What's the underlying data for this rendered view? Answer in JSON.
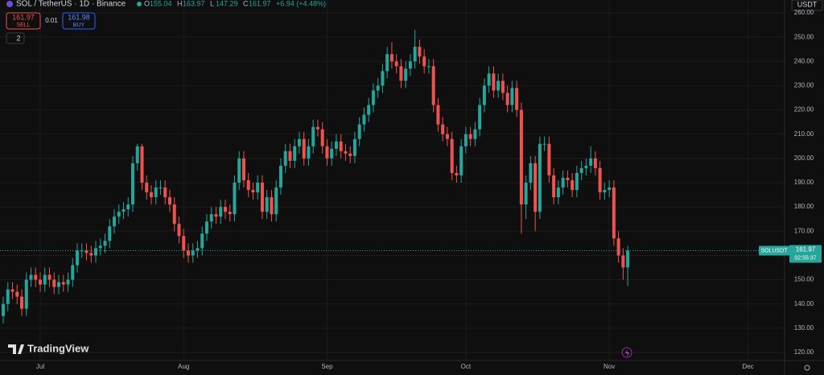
{
  "chart_data": {
    "type": "candlestick",
    "currency": "USDT",
    "symbol_tag": "SOLUSDT",
    "last_price_label": "161.97",
    "countdown": "02:55:37",
    "up_color": "#26a69a",
    "down_color": "#ef5350",
    "grid": true,
    "ylim": [
      116.67,
      265.31
    ],
    "xlim": [
      -0.7,
      168.9
    ],
    "yticks": [
      {
        "value": 120,
        "label": "120.00"
      },
      {
        "value": 130,
        "label": "130.00"
      },
      {
        "value": 140,
        "label": "140.00"
      },
      {
        "value": 150,
        "label": "150.00"
      },
      {
        "value": 160,
        "label": "160.00"
      },
      {
        "value": 170,
        "label": "170.00"
      },
      {
        "value": 180,
        "label": "180.00"
      },
      {
        "value": 190,
        "label": "190.00"
      },
      {
        "value": 200,
        "label": "200.00"
      },
      {
        "value": 210,
        "label": "210.00"
      },
      {
        "value": 220,
        "label": "220.00"
      },
      {
        "value": 230,
        "label": "230.00"
      },
      {
        "value": 240,
        "label": "240.00"
      },
      {
        "value": 250,
        "label": "250.00"
      },
      {
        "value": 260,
        "label": "260.00"
      }
    ],
    "xticks": [
      {
        "value": 8,
        "label": "Jul"
      },
      {
        "value": 39,
        "label": "Aug"
      },
      {
        "value": 70,
        "label": "Sep"
      },
      {
        "value": 100,
        "label": "Oct"
      },
      {
        "value": 131,
        "label": "Nov"
      },
      {
        "value": 161,
        "label": "Dec"
      }
    ],
    "open": [
      135,
      140,
      146,
      145,
      143,
      138,
      150,
      152,
      150,
      148,
      152,
      150,
      147,
      149,
      148,
      150,
      156,
      162,
      162,
      161,
      160,
      163,
      164,
      166,
      172,
      176,
      178,
      179,
      181,
      198,
      205,
      190,
      186,
      184,
      188,
      188,
      184,
      181,
      173,
      168,
      162,
      160,
      162,
      163,
      169,
      174,
      177,
      176,
      180,
      178,
      177,
      190,
      200,
      191,
      187,
      186,
      190,
      178,
      184,
      177,
      188,
      197,
      203,
      199,
      205,
      208,
      200,
      205,
      213,
      212,
      205,
      200,
      204,
      207,
      203,
      202,
      201,
      208,
      214,
      218,
      222,
      228,
      230,
      236,
      243,
      240,
      238,
      232,
      237,
      240,
      246,
      242,
      238,
      238,
      222,
      214,
      210,
      208,
      194,
      193,
      205,
      210,
      208,
      212,
      222,
      230,
      235,
      228,
      232,
      227,
      222,
      229,
      220,
      181,
      190,
      198,
      178,
      206,
      206,
      193,
      184,
      188,
      192,
      191,
      187,
      194,
      196,
      197,
      200,
      196,
      186,
      187,
      188,
      167,
      160,
      155.04
    ],
    "high": [
      143,
      149,
      149,
      148,
      146,
      153,
      155,
      155,
      153,
      155,
      155,
      153,
      152,
      152,
      153,
      159,
      165,
      165,
      165,
      164,
      166,
      167,
      169,
      175,
      179,
      181,
      182,
      184,
      201,
      206,
      206,
      193,
      189,
      191,
      191,
      191,
      187,
      184,
      176,
      171,
      165,
      165,
      166,
      172,
      177,
      180,
      180,
      183,
      183,
      181,
      193,
      203,
      203,
      194,
      190,
      193,
      193,
      187,
      187,
      191,
      200,
      206,
      206,
      208,
      211,
      211,
      208,
      216,
      216,
      215,
      208,
      207,
      210,
      210,
      206,
      205,
      211,
      217,
      221,
      225,
      231,
      233,
      239,
      246,
      248,
      243,
      241,
      240,
      243,
      253,
      249,
      245,
      241,
      241,
      225,
      217,
      213,
      211,
      197,
      208,
      213,
      213,
      215,
      225,
      233,
      238,
      238,
      235,
      235,
      230,
      232,
      232,
      223,
      193,
      201,
      201,
      209,
      209,
      209,
      196,
      191,
      195,
      195,
      194,
      197,
      199,
      200,
      205,
      203,
      199,
      190,
      191,
      191,
      170,
      163,
      163.97
    ],
    "low": [
      132,
      137,
      142,
      140,
      135,
      135,
      147,
      147,
      145,
      145,
      147,
      144,
      144,
      145,
      145,
      147,
      153,
      159,
      158,
      157,
      157,
      160,
      161,
      163,
      169,
      173,
      175,
      176,
      178,
      195,
      187,
      183,
      181,
      181,
      185,
      181,
      178,
      170,
      165,
      159,
      157,
      157,
      159,
      160,
      166,
      171,
      173,
      173,
      175,
      174,
      174,
      187,
      188,
      184,
      183,
      183,
      175,
      175,
      174,
      174,
      185,
      194,
      196,
      196,
      202,
      197,
      197,
      202,
      209,
      202,
      197,
      197,
      201,
      200,
      199,
      198,
      198,
      205,
      211,
      215,
      219,
      225,
      227,
      233,
      237,
      235,
      229,
      229,
      234,
      237,
      239,
      235,
      235,
      219,
      211,
      207,
      205,
      191,
      190,
      190,
      202,
      205,
      205,
      209,
      219,
      227,
      225,
      225,
      224,
      219,
      219,
      217,
      169,
      175,
      187,
      170,
      175,
      203,
      190,
      181,
      181,
      185,
      188,
      184,
      184,
      191,
      193,
      194,
      193,
      183,
      183,
      184,
      164,
      157,
      150,
      147.29
    ],
    "close": [
      140,
      146,
      145,
      143,
      138,
      150,
      152,
      150,
      148,
      152,
      150,
      147,
      149,
      148,
      150,
      156,
      162,
      162,
      161,
      160,
      163,
      164,
      166,
      172,
      176,
      178,
      179,
      181,
      198,
      205,
      190,
      186,
      184,
      188,
      188,
      184,
      181,
      173,
      168,
      162,
      160,
      162,
      163,
      169,
      174,
      177,
      176,
      180,
      178,
      177,
      190,
      200,
      191,
      187,
      186,
      190,
      178,
      184,
      177,
      188,
      197,
      203,
      199,
      205,
      208,
      200,
      205,
      213,
      212,
      205,
      200,
      204,
      207,
      203,
      202,
      201,
      208,
      214,
      218,
      222,
      228,
      230,
      236,
      243,
      240,
      238,
      232,
      237,
      240,
      246,
      242,
      238,
      238,
      222,
      214,
      210,
      208,
      194,
      193,
      205,
      210,
      208,
      212,
      222,
      230,
      235,
      228,
      232,
      227,
      222,
      229,
      220,
      181,
      190,
      198,
      178,
      206,
      206,
      193,
      184,
      188,
      192,
      191,
      187,
      194,
      196,
      197,
      200,
      196,
      186,
      187,
      188,
      167,
      160,
      155.04,
      161.97
    ]
  },
  "header": {
    "title": "SOL / TetherUS · 1D · Binance",
    "ohlc": [
      {
        "label": "O",
        "value": 155.04
      },
      {
        "label": "H",
        "value": 163.97
      },
      {
        "label": "L",
        "value": 147.29
      },
      {
        "label": "C",
        "value": 161.97
      }
    ],
    "change": "+6.94 (+4.48%)",
    "sell_price": "161.97",
    "sell": "SELL",
    "spread": "0.01",
    "buy_price": "161.98",
    "buy": "BUY",
    "indicators": "2"
  },
  "logo": "TradingView"
}
